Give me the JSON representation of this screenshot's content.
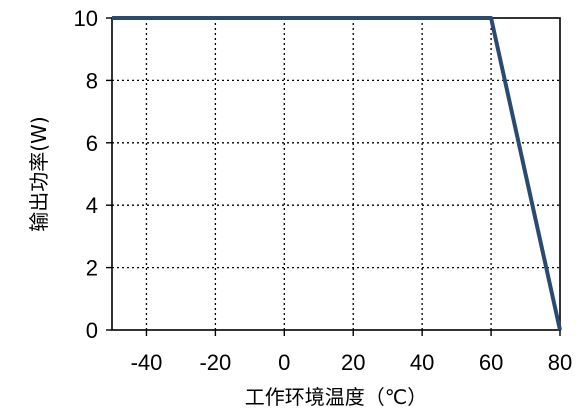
{
  "chart_data": {
    "type": "line",
    "xlabel": "工作环境温度（℃）",
    "ylabel": "输出功率(W)",
    "xlim": [
      -50,
      80
    ],
    "ylim": [
      0,
      10
    ],
    "x_ticks": [
      -40,
      -20,
      0,
      20,
      40,
      60,
      80
    ],
    "y_ticks": [
      0,
      2,
      4,
      6,
      8,
      10
    ],
    "grid": true,
    "series": [
      {
        "x": [
          -50,
          60,
          80
        ],
        "y": [
          10,
          10,
          0
        ],
        "color": "#2b4a6f"
      }
    ]
  }
}
